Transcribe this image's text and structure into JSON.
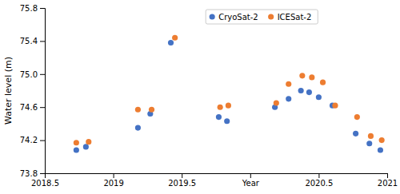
{
  "chart_data": {
    "type": "scatter",
    "y_label": "Water level (m)",
    "series": [
      {
        "name": "CryoSat-2",
        "color": "#4472C4",
        "marker": "circle",
        "x": [
          2018.73,
          2018.8,
          2019.18,
          2019.27,
          2019.42,
          2019.77,
          2019.83,
          2020.18,
          2020.28,
          2020.37,
          2020.43,
          2020.5,
          2020.6,
          2020.77,
          2020.87,
          2020.95
        ],
        "values": [
          74.08,
          74.12,
          74.35,
          74.52,
          75.38,
          74.48,
          74.43,
          74.6,
          74.7,
          74.8,
          74.78,
          74.72,
          74.62,
          74.28,
          74.16,
          74.08
        ]
      },
      {
        "name": "ICESat-2",
        "color": "#ED7D31",
        "marker": "circle",
        "x": [
          2018.73,
          2018.82,
          2019.18,
          2019.28,
          2019.45,
          2019.78,
          2019.84,
          2020.19,
          2020.28,
          2020.38,
          2020.45,
          2020.53,
          2020.62,
          2020.78,
          2020.88,
          2020.96
        ],
        "values": [
          74.17,
          74.18,
          74.57,
          74.57,
          75.44,
          74.6,
          74.62,
          74.65,
          74.88,
          74.98,
          74.96,
          74.9,
          74.62,
          74.48,
          74.25,
          74.2
        ]
      }
    ],
    "xlim": [
      2018.5,
      2021.0
    ],
    "ylim": [
      73.8,
      75.8
    ],
    "xticks": [
      2018.5,
      2019,
      2019.5,
      {
        "value": 2020,
        "label": "Year"
      },
      2020.5,
      2021
    ],
    "yticks": [
      73.8,
      74.2,
      74.6,
      {
        "value": 75,
        "label": "75.0"
      },
      75.4,
      75.8
    ],
    "legend": "top",
    "grid": false
  }
}
